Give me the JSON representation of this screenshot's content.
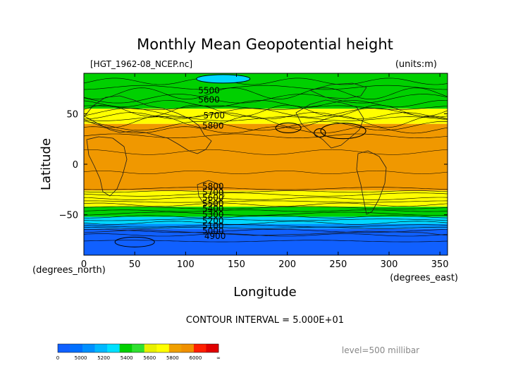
{
  "chart_data": {
    "type": "heatmap",
    "title": "Monthly Mean Geopotential height",
    "file_label": "[HGT_1962-08_NCEP.nc]",
    "units_label": "(units:m)",
    "xlabel": "Longitude",
    "ylabel": "Latitude",
    "x_unit_label": "(degrees_east)",
    "y_unit_label": "(degrees_north)",
    "xlim": [
      0,
      357.5
    ],
    "ylim": [
      -90,
      90
    ],
    "x_ticks": [
      0,
      50,
      100,
      150,
      200,
      250,
      300,
      350
    ],
    "y_ticks": [
      -50,
      0,
      50
    ],
    "contour_interval_text": "CONTOUR INTERVAL = 5.000E+01",
    "level_text": "level=500 millibar",
    "colorbar": {
      "bins": [
        {
          "from": 0,
          "to": 5000,
          "color": "#1060ff"
        },
        {
          "from": 5000,
          "to": 5100,
          "color": "#0070ff"
        },
        {
          "from": 5100,
          "to": 5200,
          "color": "#0090ff"
        },
        {
          "from": 5200,
          "to": 5300,
          "color": "#00b8ff"
        },
        {
          "from": 5300,
          "to": 5400,
          "color": "#00e0ff"
        },
        {
          "from": 5400,
          "to": 5500,
          "color": "#00d000"
        },
        {
          "from": 5500,
          "to": 5600,
          "color": "#30e030"
        },
        {
          "from": 5600,
          "to": 5700,
          "color": "#e8f000"
        },
        {
          "from": 5700,
          "to": 5800,
          "color": "#ffff00"
        },
        {
          "from": 5800,
          "to": 5900,
          "color": "#f0a000"
        },
        {
          "from": 5900,
          "to": 6000,
          "color": "#f09000"
        },
        {
          "from": 6000,
          "to": 6100,
          "color": "#ff2000"
        },
        {
          "from": 6100,
          "to": 6200,
          "color": "#e00000"
        }
      ],
      "tick_labels": [
        "0",
        "5000",
        "5200",
        "5400",
        "5600",
        "5800",
        "6000",
        "∞"
      ]
    },
    "bands": [
      {
        "lat_from": -90,
        "lat_to": -64,
        "color": "#1060ff",
        "range": "< 5000"
      },
      {
        "lat_from": -64,
        "lat_to": -59,
        "color": "#0090ff",
        "range": "5000-5200"
      },
      {
        "lat_from": -59,
        "lat_to": -52,
        "color": "#00d8ff",
        "range": "5200-5400"
      },
      {
        "lat_from": -52,
        "lat_to": -42,
        "color": "#00d000",
        "range": "5400-5600"
      },
      {
        "lat_from": -42,
        "lat_to": -26,
        "color": "#ffff00",
        "range": "5600-5800"
      },
      {
        "lat_from": -26,
        "lat_to": 40,
        "color": "#f09800",
        "range": "5800-6000"
      },
      {
        "lat_from": 40,
        "lat_to": 55,
        "color": "#ffff00",
        "range": "5600-5800"
      },
      {
        "lat_from": 55,
        "lat_to": 90,
        "color": "#00d000",
        "range": "5400-5600"
      }
    ],
    "contour_labels": [
      {
        "text": "5500",
        "lon": 123,
        "lat": 73
      },
      {
        "text": "5600",
        "lon": 123,
        "lat": 64
      },
      {
        "text": "5700",
        "lon": 128,
        "lat": 48
      },
      {
        "text": "5800",
        "lon": 127,
        "lat": 38
      },
      {
        "text": "5800",
        "lon": 127,
        "lat": -22
      },
      {
        "text": "5700",
        "lon": 127,
        "lat": -28
      },
      {
        "text": "5600",
        "lon": 127,
        "lat": -33
      },
      {
        "text": "5500",
        "lon": 127,
        "lat": -39
      },
      {
        "text": "5400",
        "lon": 127,
        "lat": -44
      },
      {
        "text": "5300",
        "lon": 127,
        "lat": -50
      },
      {
        "text": "5200",
        "lon": 127,
        "lat": -56
      },
      {
        "text": "5100",
        "lon": 127,
        "lat": -61
      },
      {
        "text": "5000",
        "lon": 127,
        "lat": -66
      },
      {
        "text": "4900",
        "lon": 129,
        "lat": -71
      }
    ]
  }
}
